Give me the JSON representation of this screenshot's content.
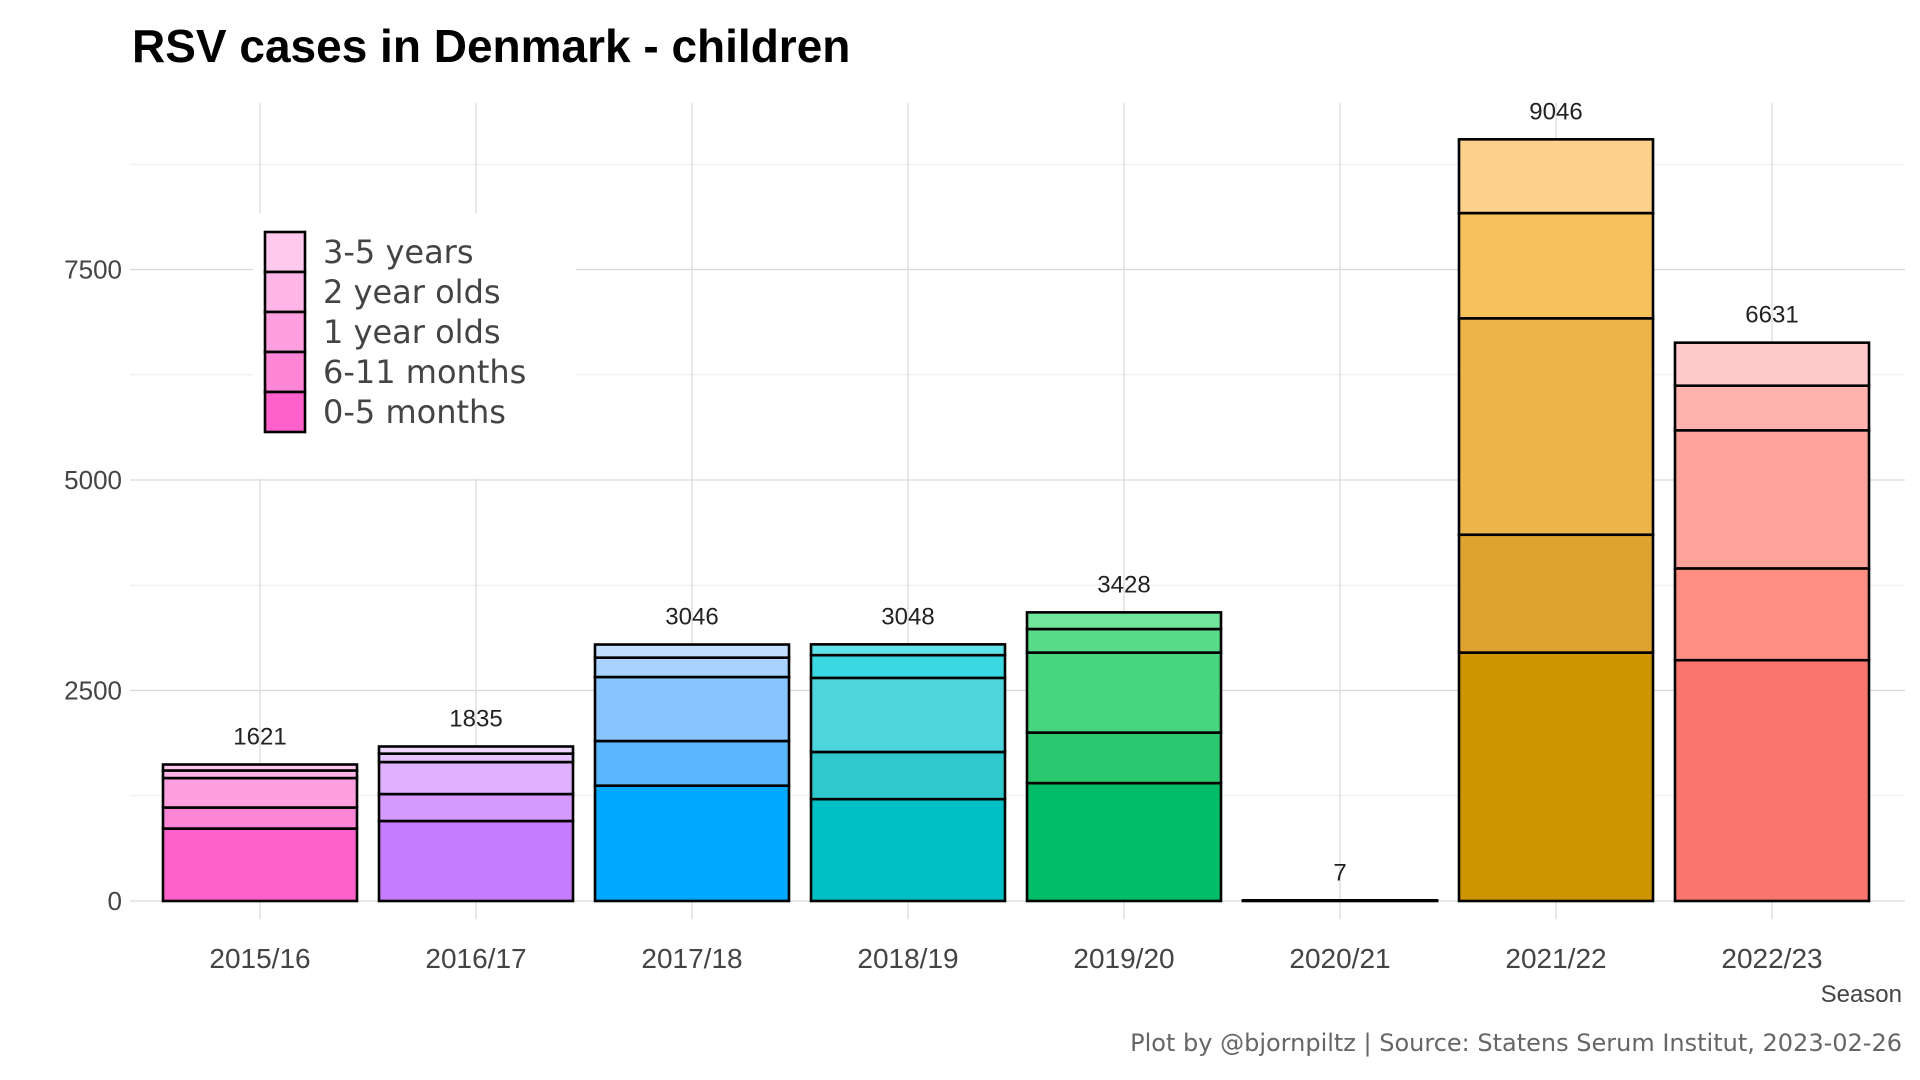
{
  "chart_data": {
    "type": "bar",
    "stacked": true,
    "title": "RSV cases in Denmark - children",
    "xlabel": "Season",
    "ylabel": "",
    "ylim": [
      0,
      9500
    ],
    "yticks": [
      0,
      2500,
      5000,
      7500
    ],
    "grid": true,
    "legend_position": "top-left",
    "legend_note": "Legend shows age groups (top to bottom of stack); each season bar uses its own color family",
    "categories": [
      "2015/16",
      "2016/17",
      "2017/18",
      "2018/19",
      "2019/20",
      "2020/21",
      "2021/22",
      "2022/23"
    ],
    "series_order": [
      "0-5 months",
      "6-11 months",
      "1 year olds",
      "2 year olds",
      "3-5 years"
    ],
    "legend": [
      "3-5 years",
      "2 year olds",
      "1 year olds",
      "6-11 months",
      "0-5 months"
    ],
    "series": [
      {
        "name": "0-5 months",
        "values": [
          860,
          950,
          1370,
          1210,
          1400,
          3,
          2950,
          2860
        ]
      },
      {
        "name": "6-11 months",
        "values": [
          250,
          320,
          530,
          560,
          600,
          1,
          1400,
          1090
        ]
      },
      {
        "name": "1 year olds",
        "values": [
          350,
          380,
          760,
          880,
          950,
          1,
          2570,
          1640
        ]
      },
      {
        "name": "2 year olds",
        "values": [
          90,
          100,
          230,
          270,
          280,
          1,
          1250,
          530
        ]
      },
      {
        "name": "3-5 years",
        "values": [
          71,
          85,
          156,
          128,
          198,
          1,
          876,
          511
        ]
      }
    ],
    "totals": [
      1621,
      1835,
      3046,
      3048,
      3428,
      7,
      9046,
      6631
    ],
    "bar_colors": [
      [
        "#ff61cc",
        "#ff85d6",
        "#ff9fdf",
        "#ffb5e6",
        "#ffc8ed"
      ],
      [
        "#c77cff",
        "#d49aff",
        "#dfb0ff",
        "#e8c4ff",
        "#f0d6ff"
      ],
      [
        "#00a9ff",
        "#5bb6ff",
        "#88c4ff",
        "#a8d2ff",
        "#c3dfff"
      ],
      [
        "#00bfc4",
        "#2fc8cd",
        "#4dd5dd",
        "#3ad8e0",
        "#60e3ea"
      ],
      [
        "#00be67",
        "#2cc86f",
        "#47d57f",
        "#58dc8a",
        "#72e59d"
      ],
      [
        "#000000",
        "#000000",
        "#000000",
        "#000000",
        "#000000"
      ],
      [
        "#cd9600",
        "#dca42c",
        "#ebb54a",
        "#f7c25c",
        "#fdd08c"
      ],
      [
        "#f8766d",
        "#ff8e84",
        "#ffa39c",
        "#ffb3ae",
        "#ffcaca"
      ]
    ],
    "legend_colors": [
      "#ffc8ed",
      "#ffb5e6",
      "#ff9fdf",
      "#ff85d6",
      "#ff61cc"
    ]
  },
  "caption": "Plot by @bjornpiltz | Source: Statens Serum Institut, 2023-02-26"
}
